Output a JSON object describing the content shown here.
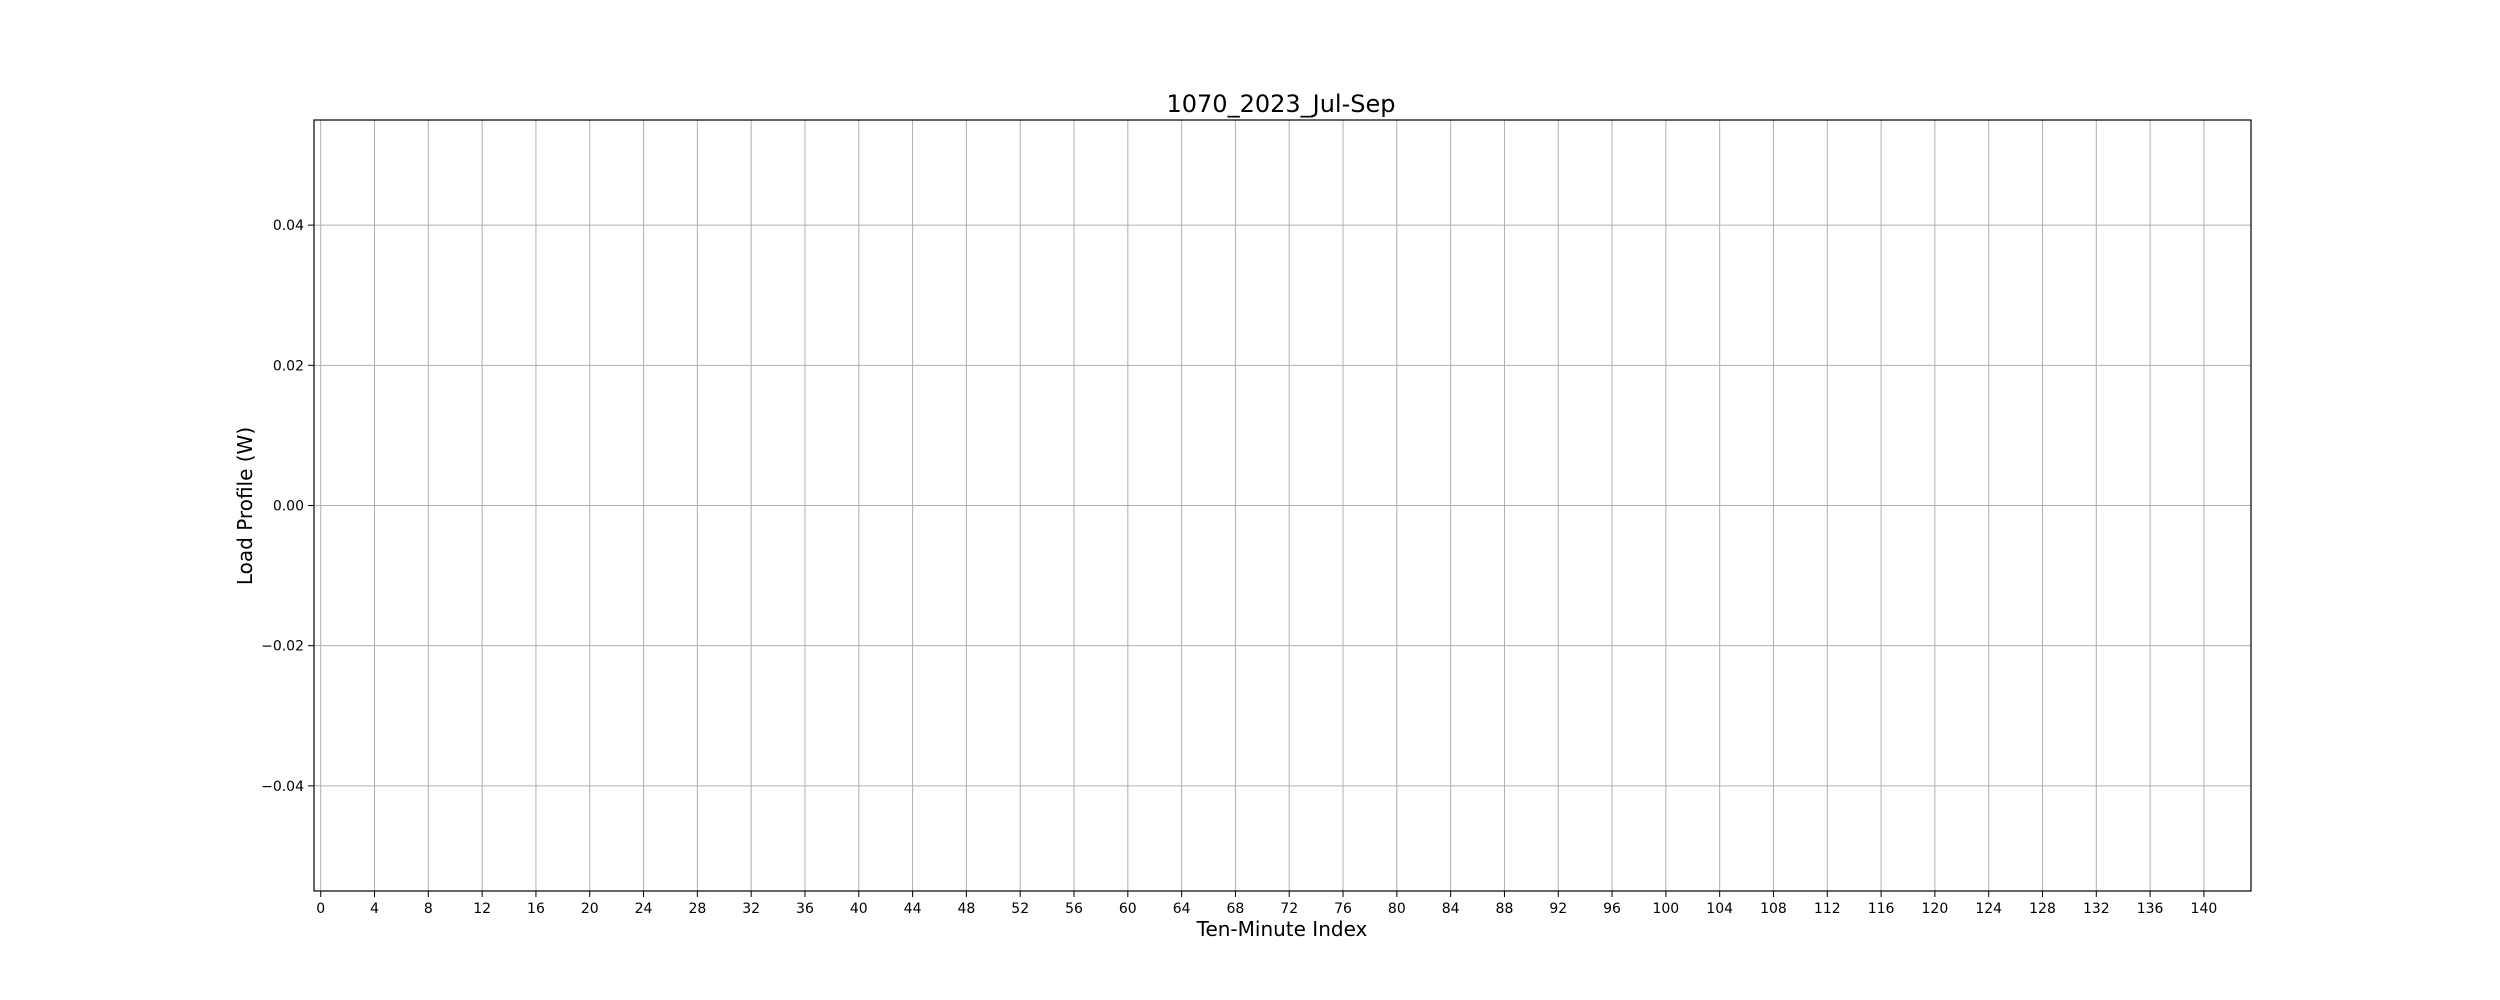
{
  "chart_data": {
    "type": "line",
    "title": "1070_2023_Jul-Sep",
    "xlabel": "Ten-Minute Index",
    "ylabel": "Load Profile (W)",
    "x_ticks": [
      0,
      4,
      8,
      12,
      16,
      20,
      24,
      28,
      32,
      36,
      40,
      44,
      48,
      52,
      56,
      60,
      64,
      68,
      72,
      76,
      80,
      84,
      88,
      92,
      96,
      100,
      104,
      108,
      112,
      116,
      120,
      124,
      128,
      132,
      136,
      140
    ],
    "y_ticks": [
      0.04,
      0.02,
      0.0,
      -0.02,
      -0.04
    ],
    "y_tick_labels": [
      "0.04",
      "0.02",
      "0.00",
      "−0.02",
      "−0.04"
    ],
    "xlim": [
      -0.5,
      143.5
    ],
    "ylim": [
      -0.055,
      0.055
    ],
    "grid": true,
    "series": []
  }
}
